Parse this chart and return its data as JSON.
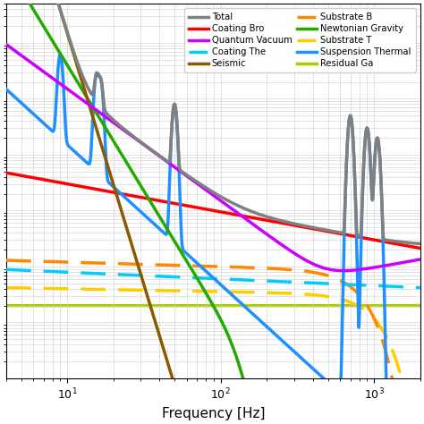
{
  "xlabel": "Frequency [Hz]",
  "xlim": [
    4,
    2000
  ],
  "ylim_log": [
    -25,
    -18.3
  ],
  "background_color": "#ffffff",
  "grid_color": "#cccccc",
  "lines": {
    "total": {
      "color": "#808080",
      "lw": 2.5,
      "ls": "-",
      "label": "Total"
    },
    "quantum": {
      "color": "#cc00ff",
      "lw": 2.5,
      "ls": "-",
      "label": "Quantum Vacuum"
    },
    "seismic": {
      "color": "#8B5A00",
      "lw": 2.5,
      "ls": "-",
      "label": "Seismic"
    },
    "newtonian": {
      "color": "#22aa00",
      "lw": 2.5,
      "ls": "-",
      "label": "Newtonian Gravity"
    },
    "suspension": {
      "color": "#1E90FF",
      "lw": 2.5,
      "ls": "-",
      "label": "Suspension Thermal"
    },
    "coating_br": {
      "color": "#ff0000",
      "lw": 2.5,
      "ls": "-",
      "label": "Coating Bro"
    },
    "coating_th": {
      "color": "#00ccff",
      "lw": 2.5,
      "ls": "--",
      "label": "Coating The"
    },
    "substrate_b": {
      "color": "#ff8800",
      "lw": 2.5,
      "ls": "--",
      "label": "Substrate B"
    },
    "substrate_t": {
      "color": "#ffcc00",
      "lw": 2.5,
      "ls": "--",
      "label": "Substrate T"
    },
    "residual": {
      "color": "#aacc00",
      "lw": 2.5,
      "ls": "-",
      "label": "Residual Ga"
    }
  }
}
